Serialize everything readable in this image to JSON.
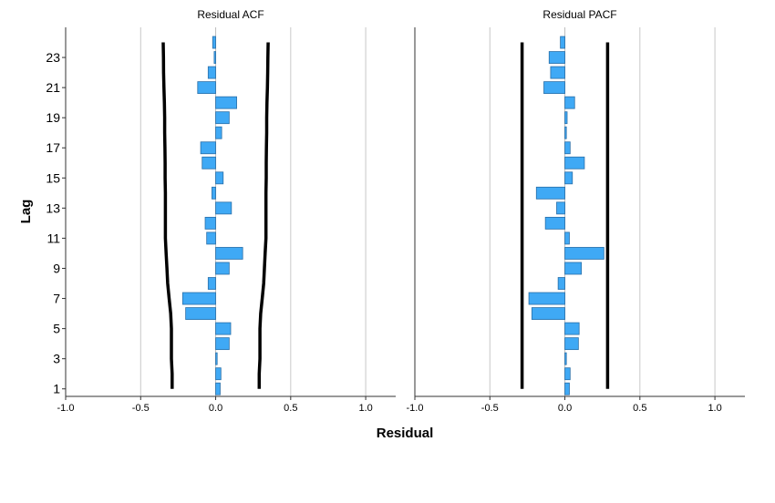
{
  "chart_data": {
    "type": "bar",
    "orientation": "horizontal",
    "xlabel": "Residual",
    "ylabel": "Lag",
    "xlim": [
      -1.0,
      1.2
    ],
    "x_ticks": [
      -1.0,
      -0.5,
      0.0,
      0.5,
      1.0
    ],
    "x_tick_labels": [
      "-1.0",
      "-0.5",
      "0.0",
      "0.5",
      "1.0"
    ],
    "y_ticks": [
      1,
      3,
      5,
      7,
      9,
      11,
      13,
      15,
      17,
      19,
      21,
      23
    ],
    "y_tick_labels": [
      "1",
      "3",
      "5",
      "7",
      "9",
      "11",
      "13",
      "15",
      "17",
      "19",
      "21",
      "23"
    ],
    "lags": [
      1,
      2,
      3,
      4,
      5,
      6,
      7,
      8,
      9,
      10,
      11,
      12,
      13,
      14,
      15,
      16,
      17,
      18,
      19,
      20,
      21,
      22,
      23,
      24
    ],
    "grid": "vertical",
    "bar_color": "#3fa9f5",
    "bar_stroke": "#2a6fa8",
    "line_color": "#000000",
    "panels": [
      {
        "title": "Residual ACF",
        "values": [
          0.03,
          0.035,
          0.01,
          0.09,
          0.1,
          -0.2,
          -0.22,
          -0.05,
          0.09,
          0.18,
          -0.06,
          -0.07,
          0.105,
          -0.025,
          0.05,
          -0.09,
          -0.1,
          0.04,
          0.09,
          0.14,
          -0.12,
          -0.05,
          -0.01,
          -0.02
        ],
        "upper_limit": [
          0.29,
          0.29,
          0.295,
          0.295,
          0.295,
          0.3,
          0.31,
          0.32,
          0.325,
          0.33,
          0.335,
          0.335,
          0.335,
          0.335,
          0.337,
          0.337,
          0.338,
          0.34,
          0.34,
          0.342,
          0.345,
          0.347,
          0.348,
          0.35
        ],
        "lower_limit": [
          -0.29,
          -0.29,
          -0.295,
          -0.295,
          -0.295,
          -0.3,
          -0.31,
          -0.32,
          -0.325,
          -0.33,
          -0.335,
          -0.335,
          -0.335,
          -0.335,
          -0.337,
          -0.337,
          -0.338,
          -0.34,
          -0.34,
          -0.342,
          -0.345,
          -0.347,
          -0.348,
          -0.35
        ]
      },
      {
        "title": "Residual PACF",
        "values": [
          0.03,
          0.035,
          0.01,
          0.09,
          0.095,
          -0.22,
          -0.24,
          -0.045,
          0.11,
          0.26,
          0.03,
          -0.13,
          -0.055,
          -0.19,
          0.05,
          0.13,
          0.035,
          0.01,
          0.015,
          0.065,
          -0.14,
          -0.095,
          -0.105,
          -0.03
        ],
        "upper_limit": [
          0.285,
          0.285,
          0.285,
          0.285,
          0.285,
          0.285,
          0.285,
          0.285,
          0.285,
          0.285,
          0.285,
          0.285,
          0.285,
          0.285,
          0.285,
          0.285,
          0.285,
          0.285,
          0.285,
          0.285,
          0.285,
          0.285,
          0.285,
          0.285
        ],
        "lower_limit": [
          -0.285,
          -0.285,
          -0.285,
          -0.285,
          -0.285,
          -0.285,
          -0.285,
          -0.285,
          -0.285,
          -0.285,
          -0.285,
          -0.285,
          -0.285,
          -0.285,
          -0.285,
          -0.285,
          -0.285,
          -0.285,
          -0.285,
          -0.285,
          -0.285,
          -0.285,
          -0.285,
          -0.285
        ]
      }
    ]
  }
}
